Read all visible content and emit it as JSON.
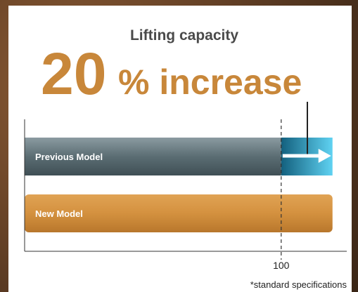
{
  "chart_data": {
    "type": "bar",
    "orientation": "horizontal",
    "title": "Lifting capacity",
    "headline_number": "20",
    "headline_text": "% increase",
    "categories": [
      "Previous Model",
      "New Model"
    ],
    "values": [
      100,
      120
    ],
    "colors": [
      "#5b6d73",
      "#d4913f"
    ],
    "increase_color": "#2a8fb4",
    "xlim": [
      0,
      125
    ],
    "xticks": [
      100
    ],
    "footnote": "*standard specifications"
  }
}
